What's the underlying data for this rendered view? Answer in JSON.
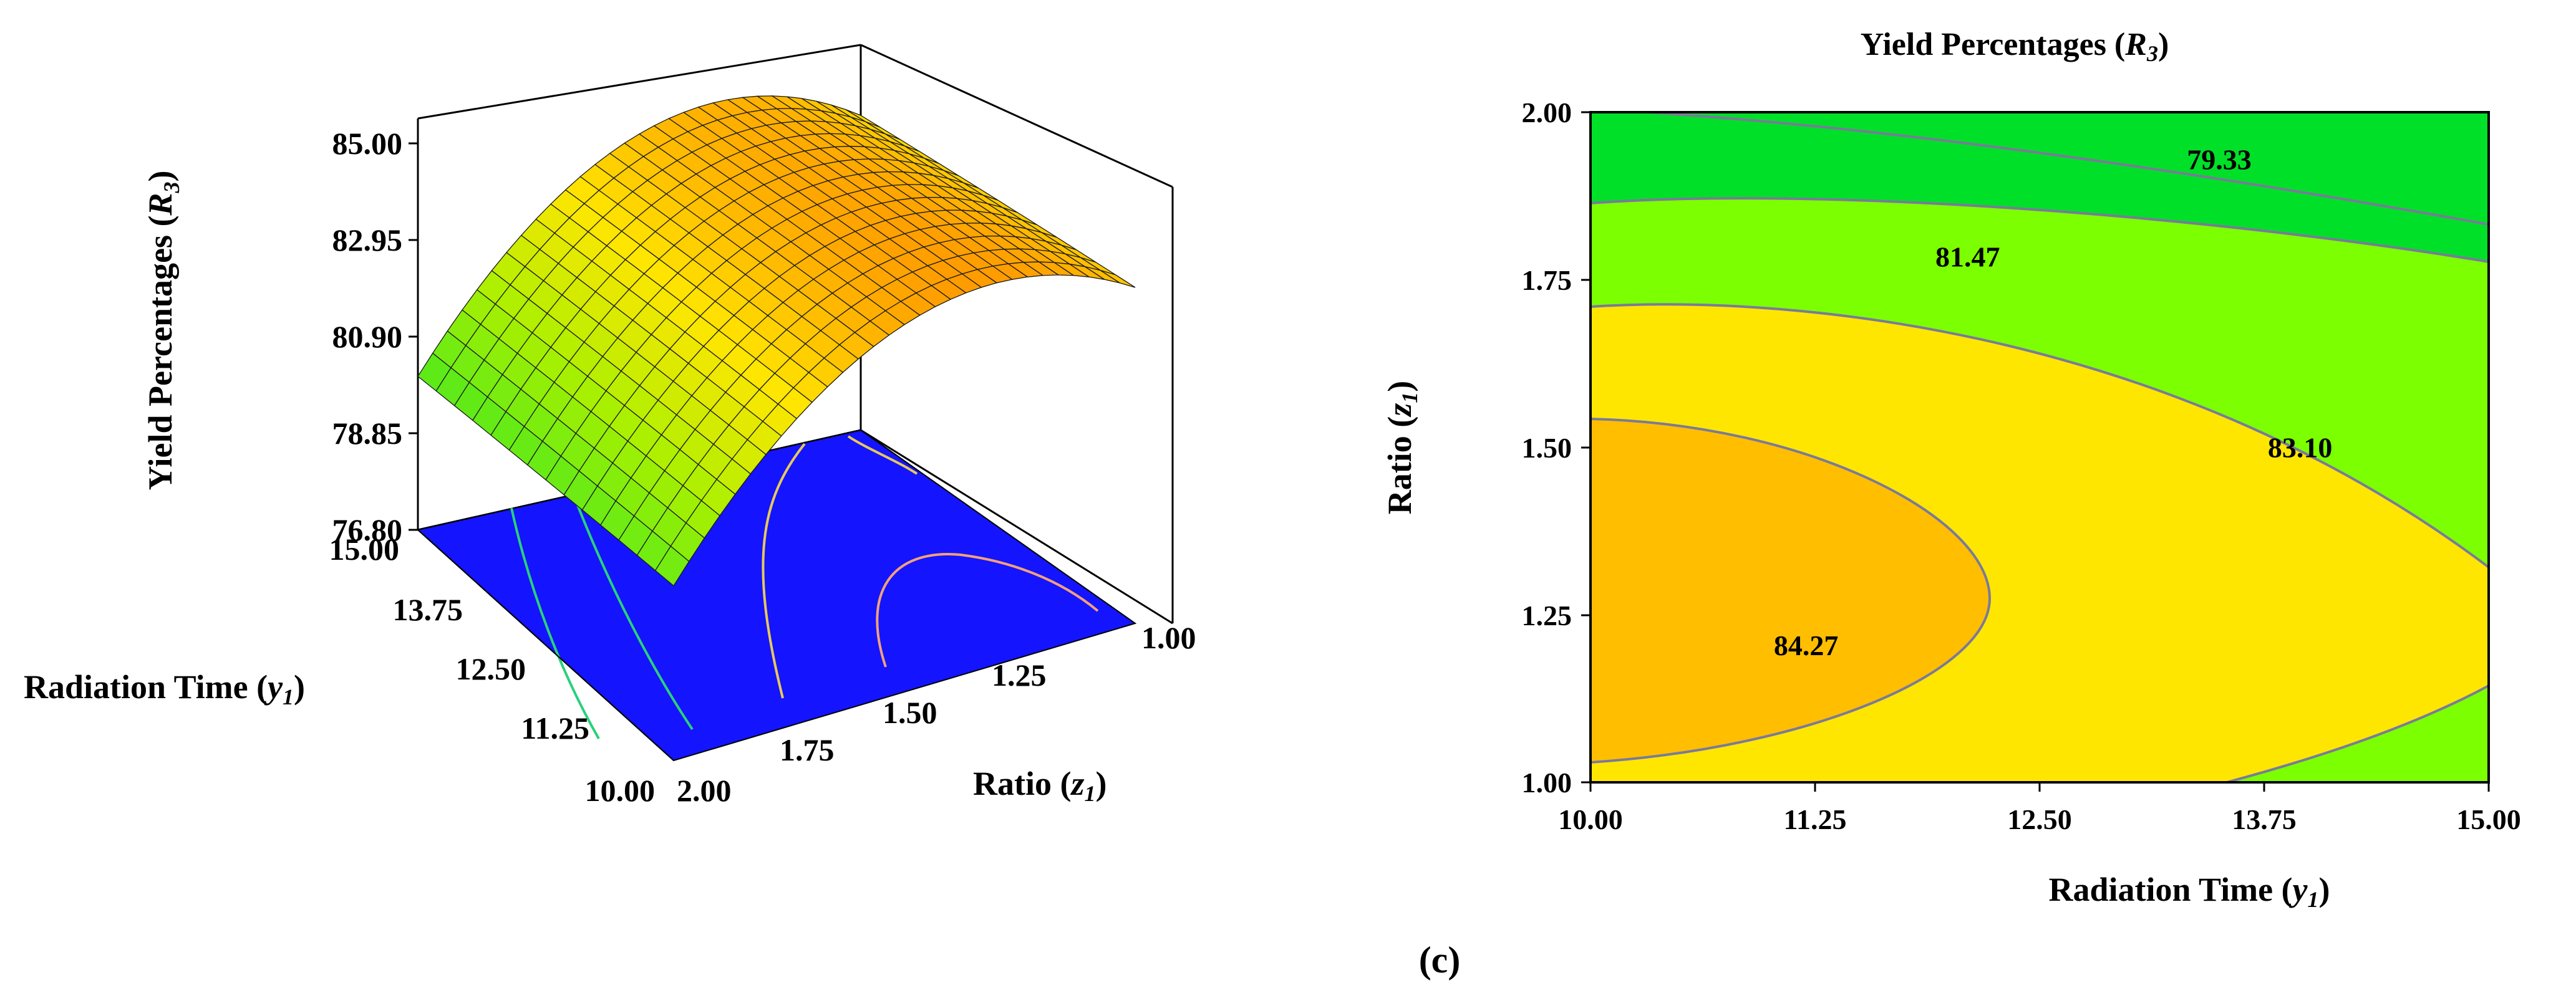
{
  "figure_label": "(c)",
  "colors": {
    "floor": "#1414ff",
    "contour_low": "#00e028",
    "contour_mid": "#7cff00",
    "contour_high": "#ffe600",
    "contour_peak": "#ffbe00",
    "contour_line": "#7a7a9a",
    "frame": "#000000"
  },
  "chart_data": [
    {
      "type": "surface3d",
      "zlabel_main": "Yield Percentages (",
      "zlabel_var": "R",
      "zlabel_sub": "3",
      "zlabel_close": ")",
      "ylabel_main": "Radiation Time (",
      "ylabel_var": "y",
      "ylabel_sub": "1",
      "ylabel_close": ")",
      "xlabel_main": "Ratio (",
      "xlabel_var": "z",
      "xlabel_sub": "1",
      "xlabel_close": ")",
      "z_ticks": [
        "85.00",
        "82.95",
        "80.90",
        "78.85",
        "76.80"
      ],
      "y_ticks": [
        "15.00",
        "13.75",
        "12.50",
        "11.25",
        "10.00"
      ],
      "x_ticks": [
        "2.00",
        "1.75",
        "1.50",
        "1.25",
        "1.00"
      ],
      "zlim": [
        76.8,
        85.0
      ],
      "ratio_range": [
        1.0,
        2.0
      ],
      "time_range": [
        10.0,
        15.0
      ]
    },
    {
      "type": "contour",
      "title_main": "Yield Percentages (",
      "title_var": "R",
      "title_sub": "3",
      "title_close": ")",
      "xlabel_main": "Radiation Time (",
      "xlabel_var": "y",
      "xlabel_sub": "1",
      "xlabel_close": ")",
      "ylabel_main": "Ratio (",
      "ylabel_var": "z",
      "ylabel_sub": "1",
      "ylabel_close": ")",
      "x_ticks": [
        "10.00",
        "11.25",
        "12.50",
        "13.75",
        "15.00"
      ],
      "y_ticks": [
        "2.00",
        "1.75",
        "1.50",
        "1.25",
        "1.00"
      ],
      "xlim": [
        10.0,
        15.0
      ],
      "ylim": [
        1.0,
        2.0
      ],
      "contour_labels": [
        {
          "text": "79.33",
          "x": 13.5,
          "y": 1.915
        },
        {
          "text": "81.47",
          "x": 12.1,
          "y": 1.77
        },
        {
          "text": "83.10",
          "x": 13.95,
          "y": 1.485
        },
        {
          "text": "84.27",
          "x": 11.2,
          "y": 1.19
        }
      ],
      "levels": [
        79.33,
        81.47,
        83.1,
        84.27
      ]
    }
  ]
}
